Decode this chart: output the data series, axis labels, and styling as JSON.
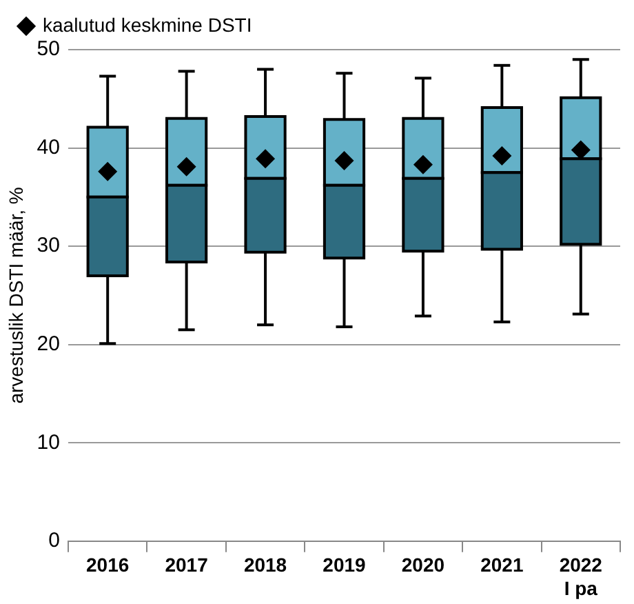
{
  "chart_data": {
    "type": "box",
    "ylabel": "arvestuslik DSTI määr, %",
    "categories": [
      "2016",
      "2017",
      "2018",
      "2019",
      "2020",
      "2021",
      "2022\nI pa"
    ],
    "ylim": [
      0,
      50
    ],
    "yticks": [
      0,
      10,
      20,
      30,
      40,
      50
    ],
    "grid": "y",
    "legend": "top left",
    "series": [
      {
        "color": "#64b1c8",
        "colors": [
          "#2e6c80",
          "#2e6c80",
          "#2e6c80",
          "#2e6c80",
          "#2e6c80",
          "#2e6c80",
          "#2e6c80"
        ],
        "boxes": [
          {
            "low": 20.1,
            "q1": 27.0,
            "median": 35.0,
            "q3": 42.1,
            "high": 47.3
          },
          {
            "low": 21.5,
            "q1": 28.4,
            "median": 36.2,
            "q3": 43.0,
            "high": 47.8
          },
          {
            "low": 22.0,
            "q1": 29.4,
            "median": 36.9,
            "q3": 43.2,
            "high": 48.0
          },
          {
            "low": 21.8,
            "q1": 28.8,
            "median": 36.2,
            "q3": 42.9,
            "high": 47.6
          },
          {
            "low": 22.9,
            "q1": 29.5,
            "median": 36.9,
            "q3": 43.0,
            "high": 47.1
          },
          {
            "low": 22.3,
            "q1": 29.7,
            "median": 37.5,
            "q3": 44.1,
            "high": 48.4
          },
          {
            "low": 23.1,
            "q1": 30.2,
            "median": 38.9,
            "q3": 45.1,
            "high": 49.0
          }
        ]
      },
      {
        "type": "scatter",
        "name": "kaalutud keskmine DSTI",
        "color": "#000000",
        "marker": "diamond",
        "values": [
          37.6,
          38.1,
          38.9,
          38.7,
          38.3,
          39.2,
          39.8
        ]
      }
    ]
  }
}
